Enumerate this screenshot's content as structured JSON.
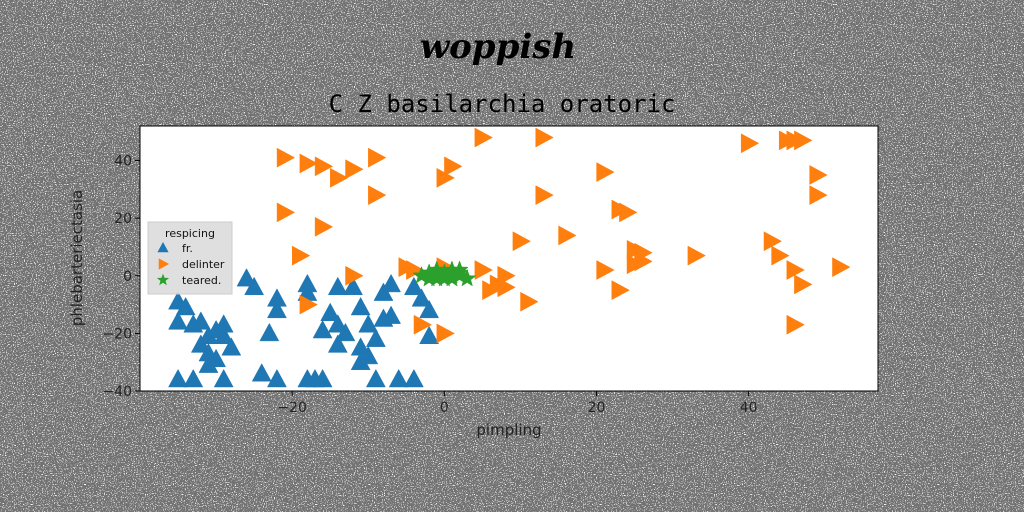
{
  "chart_data": {
    "type": "scatter",
    "suptitle": "woppish",
    "title": "C Z basilarchia oratoric",
    "xlabel": "pimpling",
    "ylabel": "phlebarteriectasia",
    "xlim": [
      -40,
      57
    ],
    "ylim": [
      -40,
      52
    ],
    "xticks": [
      -20,
      0,
      20,
      40
    ],
    "yticks": [
      -40,
      -20,
      0,
      20,
      40
    ],
    "grid": false,
    "legend": {
      "title": "respicing",
      "placement": "center-left"
    },
    "series": [
      {
        "name": "fr.",
        "marker": "triangle-up",
        "color": "#1f77b4",
        "points": [
          [
            -35,
            -36
          ],
          [
            -33,
            -36
          ],
          [
            -35,
            -9
          ],
          [
            -34,
            -11
          ],
          [
            -35,
            -16
          ],
          [
            -33,
            -17
          ],
          [
            -32,
            -16
          ],
          [
            -31,
            -21
          ],
          [
            -30,
            -19
          ],
          [
            -29,
            -17
          ],
          [
            -29,
            -21
          ],
          [
            -32,
            -24
          ],
          [
            -31,
            -27
          ],
          [
            -30,
            -29
          ],
          [
            -31,
            -31
          ],
          [
            -28,
            -25
          ],
          [
            -29,
            -36
          ],
          [
            -26,
            -1
          ],
          [
            -25,
            -4
          ],
          [
            -23,
            -20
          ],
          [
            -24,
            -34
          ],
          [
            -22,
            -36
          ],
          [
            -22,
            -8
          ],
          [
            -22,
            -12
          ],
          [
            -18,
            -36
          ],
          [
            -17,
            -36
          ],
          [
            -16,
            -36
          ],
          [
            -18,
            -3
          ],
          [
            -18,
            -6
          ],
          [
            -16,
            -19
          ],
          [
            -15,
            -13
          ],
          [
            -14,
            -17
          ],
          [
            -14,
            -24
          ],
          [
            -14,
            -4
          ],
          [
            -13,
            -20
          ],
          [
            -12,
            -4
          ],
          [
            -11,
            -11
          ],
          [
            -11,
            -25
          ],
          [
            -11,
            -30
          ],
          [
            -10,
            -28
          ],
          [
            -10,
            -17
          ],
          [
            -9,
            -22
          ],
          [
            -9,
            -36
          ],
          [
            -8,
            -15
          ],
          [
            -8,
            -6
          ],
          [
            -7,
            -3
          ],
          [
            -7,
            -14
          ],
          [
            -6,
            -36
          ],
          [
            -4,
            -36
          ],
          [
            -4,
            -4
          ],
          [
            -3,
            -8
          ],
          [
            -2,
            -12
          ],
          [
            -2,
            -21
          ]
        ]
      },
      {
        "name": "delinter",
        "marker": "triangle-right",
        "color": "#ff7f0e",
        "points": [
          [
            -21,
            41
          ],
          [
            -18,
            39
          ],
          [
            -16,
            38
          ],
          [
            -14,
            34
          ],
          [
            -12,
            37
          ],
          [
            -9,
            41
          ],
          [
            -9,
            28
          ],
          [
            -21,
            22
          ],
          [
            -16,
            17
          ],
          [
            -19,
            7
          ],
          [
            -18,
            -10
          ],
          [
            -12,
            0
          ],
          [
            -5,
            3
          ],
          [
            -4,
            2
          ],
          [
            0,
            3
          ],
          [
            1,
            38
          ],
          [
            0,
            34
          ],
          [
            5,
            48
          ],
          [
            13,
            48
          ],
          [
            13,
            28
          ],
          [
            10,
            12
          ],
          [
            16,
            14
          ],
          [
            21,
            36
          ],
          [
            23,
            23
          ],
          [
            24,
            22
          ],
          [
            25,
            9
          ],
          [
            26,
            5
          ],
          [
            33,
            7
          ],
          [
            40,
            46
          ],
          [
            45,
            47
          ],
          [
            46,
            47
          ],
          [
            47,
            47
          ],
          [
            49,
            35
          ],
          [
            49,
            28
          ],
          [
            52,
            3
          ],
          [
            43,
            12
          ],
          [
            44,
            7
          ],
          [
            46,
            2
          ],
          [
            47,
            -3
          ],
          [
            46,
            -17
          ],
          [
            5,
            2
          ],
          [
            8,
            0
          ],
          [
            7,
            -3
          ],
          [
            6,
            -5
          ],
          [
            8,
            -4
          ],
          [
            11,
            -9
          ],
          [
            21,
            2
          ],
          [
            23,
            -5
          ],
          [
            25,
            4
          ],
          [
            26,
            8
          ],
          [
            -3,
            -17
          ],
          [
            0,
            -20
          ]
        ]
      },
      {
        "name": "teared.",
        "marker": "star",
        "color": "#2ca02c",
        "points": [
          [
            -3,
            0
          ],
          [
            -2,
            1
          ],
          [
            -1,
            0
          ],
          [
            -1,
            2
          ],
          [
            0,
            0
          ],
          [
            0,
            1
          ],
          [
            1,
            0
          ],
          [
            1,
            2
          ],
          [
            2,
            0
          ],
          [
            2,
            1
          ],
          [
            3,
            -1
          ],
          [
            -2,
            -1
          ],
          [
            -1,
            -1
          ],
          [
            1,
            -1
          ],
          [
            0,
            -1
          ],
          [
            2,
            2
          ]
        ]
      }
    ]
  }
}
